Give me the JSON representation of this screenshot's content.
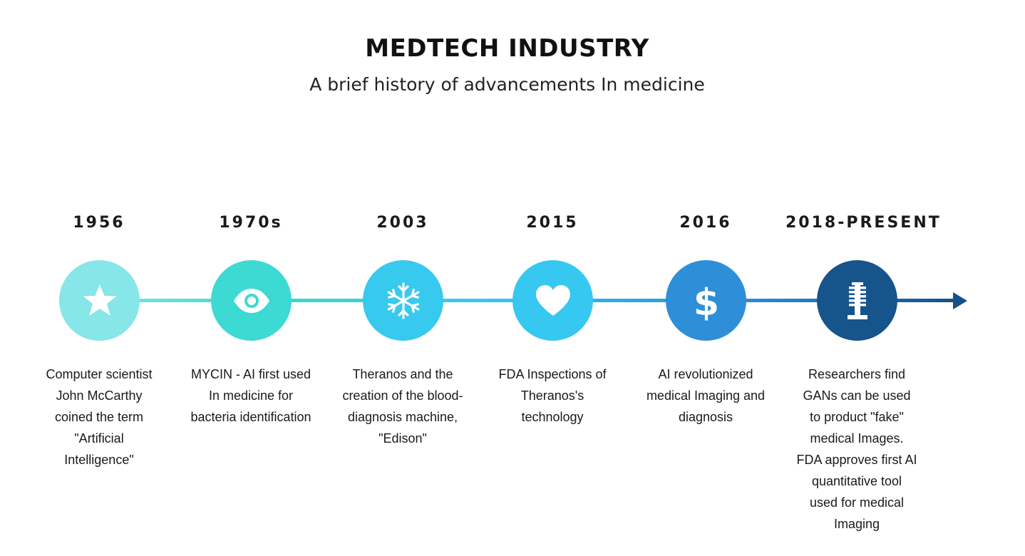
{
  "header": {
    "title": "MEDTECH INDUSTRY",
    "subtitle": "A brief history of advancements In medicine"
  },
  "timeline": [
    {
      "year": "1956",
      "icon": "star-icon",
      "color": "#86e6e8",
      "description": "Computer scientist John McCarthy coined the term \"Artificial Intelligence\""
    },
    {
      "year": "1970s",
      "icon": "eye-icon",
      "color": "#3dd9d3",
      "description": "MYCIN - AI first used In medicine for bacteria identification"
    },
    {
      "year": "2003",
      "icon": "snowflake-icon",
      "color": "#38c9ef",
      "description": "Theranos and the creation of the blood-diagnosis machine, \"Edison\""
    },
    {
      "year": "2015",
      "icon": "heart-icon",
      "color": "#36c8f0",
      "description": "FDA Inspections of Theranos's technology"
    },
    {
      "year": "2016",
      "icon": "dollar-icon",
      "color": "#2e8fd8",
      "description": "AI revolutionized medical Imaging and diagnosis"
    },
    {
      "year": "2018-PRESENT",
      "icon": "antenna-icon",
      "color": "#16548c",
      "description": "Researchers find GANs can be used to product \"fake\" medical Images. FDA approves first AI quantitative tool used for medical Imaging"
    }
  ],
  "colors": {
    "line_start": "#7fe3e8",
    "line_end": "#16508a"
  }
}
